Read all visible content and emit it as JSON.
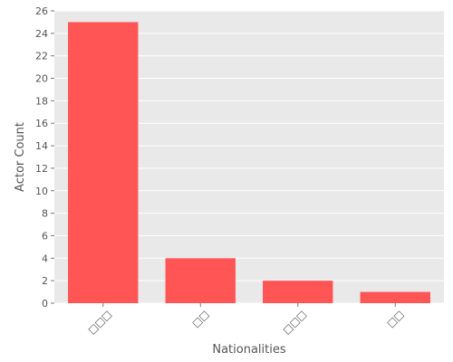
{
  "chart_data": {
    "type": "bar",
    "categories": [
      "□□□",
      "□□",
      "□□□",
      "□□"
    ],
    "values": [
      25,
      4,
      2,
      1
    ],
    "xlabel": "Nationalities",
    "ylabel": "Actor Count",
    "ylim": [
      0,
      26
    ],
    "yticks": [
      0,
      2,
      4,
      6,
      8,
      10,
      12,
      14,
      16,
      18,
      20,
      22,
      24,
      26
    ],
    "grid": true,
    "bar_color": "#ff5555",
    "panel_color": "#e9e9e9",
    "grid_color": "#ffffff"
  }
}
